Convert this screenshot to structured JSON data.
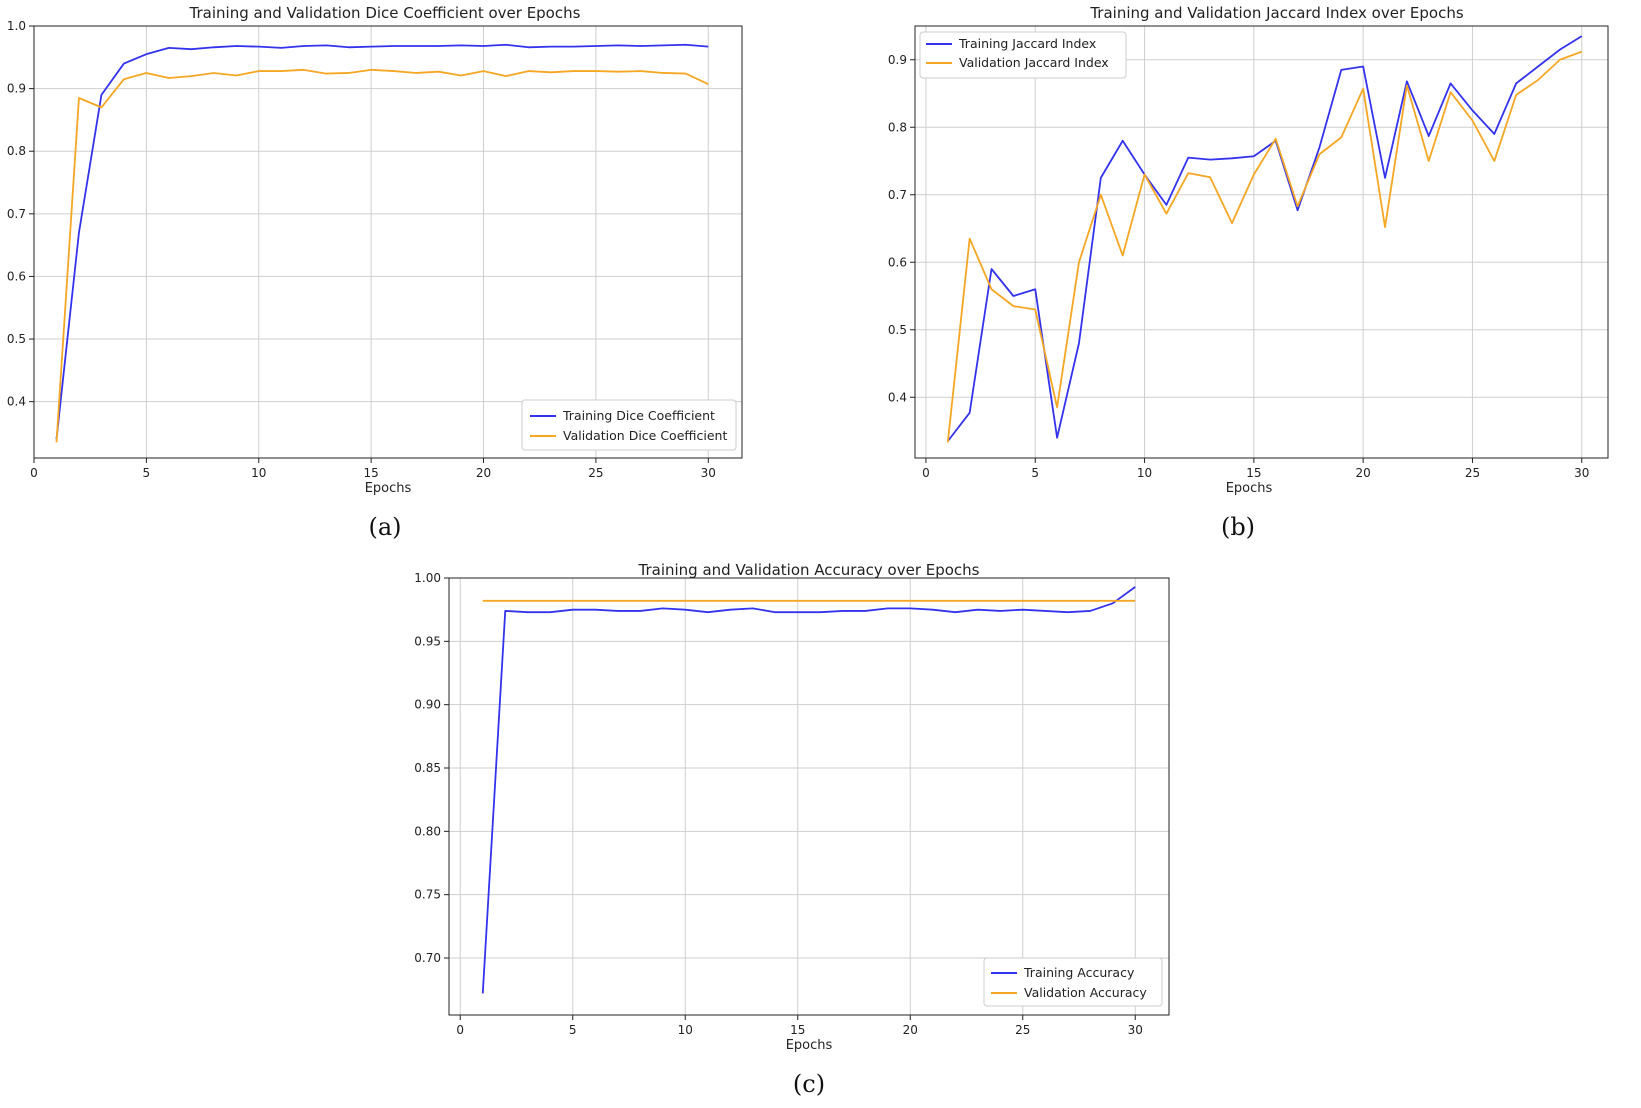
{
  "chart_data": [
    {
      "type": "line",
      "panel": "(a)",
      "title": "Training and Validation Dice Coefficient over Epochs",
      "xlabel": "Epochs",
      "ylabel": "",
      "xlim": [
        0,
        31.5
      ],
      "ylim": [
        0.31,
        1.0
      ],
      "xticks": [
        0,
        5,
        10,
        15,
        20,
        25,
        30
      ],
      "xtick_labels": [
        "0",
        "5",
        "10",
        "15",
        "20",
        "25",
        "30"
      ],
      "yticks": [
        0.4,
        0.5,
        0.6,
        0.7,
        0.8,
        0.9,
        1.0
      ],
      "ytick_labels": [
        "0.4",
        "0.5",
        "0.6",
        "0.7",
        "0.8",
        "0.9",
        "1.0"
      ],
      "grid": true,
      "legend_position": "lower-right",
      "x": [
        1,
        2,
        3,
        4,
        5,
        6,
        7,
        8,
        9,
        10,
        11,
        12,
        13,
        14,
        15,
        16,
        17,
        18,
        19,
        20,
        21,
        22,
        23,
        24,
        25,
        26,
        27,
        28,
        29,
        30
      ],
      "series": [
        {
          "name": "Training Dice Coefficient",
          "color": "#3333ee",
          "values": [
            0.34,
            0.67,
            0.89,
            0.94,
            0.955,
            0.965,
            0.963,
            0.966,
            0.968,
            0.967,
            0.965,
            0.968,
            0.969,
            0.966,
            0.967,
            0.968,
            0.968,
            0.968,
            0.969,
            0.968,
            0.97,
            0.966,
            0.967,
            0.967,
            0.968,
            0.969,
            0.968,
            0.969,
            0.97,
            0.967
          ]
        },
        {
          "name": "Validation Dice Coefficient",
          "color": "#f5a623",
          "values": [
            0.335,
            0.885,
            0.87,
            0.915,
            0.925,
            0.917,
            0.92,
            0.925,
            0.921,
            0.928,
            0.928,
            0.93,
            0.924,
            0.925,
            0.93,
            0.928,
            0.925,
            0.927,
            0.921,
            0.928,
            0.92,
            0.928,
            0.926,
            0.928,
            0.928,
            0.927,
            0.928,
            0.925,
            0.924,
            0.907
          ]
        }
      ]
    },
    {
      "type": "line",
      "panel": "(b)",
      "title": "Training and Validation Jaccard Index over Epochs",
      "xlabel": "Epochs",
      "ylabel": "",
      "xlim": [
        -0.5,
        31.2
      ],
      "ylim": [
        0.31,
        0.95
      ],
      "xticks": [
        0,
        5,
        10,
        15,
        20,
        25,
        30
      ],
      "xtick_labels": [
        "0",
        "5",
        "10",
        "15",
        "20",
        "25",
        "30"
      ],
      "yticks": [
        0.4,
        0.5,
        0.6,
        0.7,
        0.8,
        0.9
      ],
      "ytick_labels": [
        "0.4",
        "0.5",
        "0.6",
        "0.7",
        "0.8",
        "0.9"
      ],
      "grid": true,
      "legend_position": "upper-left",
      "x": [
        1,
        2,
        3,
        4,
        5,
        6,
        7,
        8,
        9,
        10,
        11,
        12,
        13,
        14,
        15,
        16,
        17,
        18,
        19,
        20,
        21,
        22,
        23,
        24,
        25,
        26,
        27,
        28,
        29,
        30
      ],
      "series": [
        {
          "name": "Training Jaccard Index",
          "color": "#3333ee",
          "values": [
            0.335,
            0.377,
            0.59,
            0.55,
            0.56,
            0.34,
            0.48,
            0.725,
            0.78,
            0.73,
            0.685,
            0.755,
            0.752,
            0.754,
            0.757,
            0.78,
            0.677,
            0.77,
            0.885,
            0.89,
            0.725,
            0.868,
            0.787,
            0.865,
            0.825,
            0.79,
            0.865,
            0.89,
            0.915,
            0.935
          ]
        },
        {
          "name": "Validation Jaccard Index",
          "color": "#f5a623",
          "values": [
            0.333,
            0.635,
            0.56,
            0.535,
            0.53,
            0.385,
            0.6,
            0.7,
            0.61,
            0.73,
            0.672,
            0.732,
            0.726,
            0.658,
            0.73,
            0.783,
            0.683,
            0.76,
            0.785,
            0.857,
            0.652,
            0.862,
            0.75,
            0.852,
            0.81,
            0.75,
            0.848,
            0.87,
            0.9,
            0.912
          ]
        }
      ]
    },
    {
      "type": "line",
      "panel": "(c)",
      "title": "Training and Validation Accuracy over Epochs",
      "xlabel": "Epochs",
      "ylabel": "",
      "xlim": [
        -0.5,
        31.5
      ],
      "ylim": [
        0.655,
        1.0
      ],
      "xticks": [
        0,
        5,
        10,
        15,
        20,
        25,
        30
      ],
      "xtick_labels": [
        "0",
        "5",
        "10",
        "15",
        "20",
        "25",
        "30"
      ],
      "yticks": [
        0.7,
        0.75,
        0.8,
        0.85,
        0.9,
        0.95,
        1.0
      ],
      "ytick_labels": [
        "0.70",
        "0.75",
        "0.80",
        "0.85",
        "0.90",
        "0.95",
        "1.00"
      ],
      "grid": true,
      "legend_position": "lower-right",
      "x": [
        1,
        2,
        3,
        4,
        5,
        6,
        7,
        8,
        9,
        10,
        11,
        12,
        13,
        14,
        15,
        16,
        17,
        18,
        19,
        20,
        21,
        22,
        23,
        24,
        25,
        26,
        27,
        28,
        29,
        30
      ],
      "series": [
        {
          "name": "Training Accuracy",
          "color": "#3333ee",
          "values": [
            0.672,
            0.974,
            0.973,
            0.973,
            0.975,
            0.975,
            0.974,
            0.974,
            0.976,
            0.975,
            0.973,
            0.975,
            0.976,
            0.973,
            0.973,
            0.973,
            0.974,
            0.974,
            0.976,
            0.976,
            0.975,
            0.973,
            0.975,
            0.974,
            0.975,
            0.974,
            0.973,
            0.974,
            0.98,
            0.993
          ]
        },
        {
          "name": "Validation Accuracy",
          "color": "#f5a623",
          "values": [
            0.982,
            0.982,
            0.982,
            0.982,
            0.982,
            0.982,
            0.982,
            0.982,
            0.982,
            0.982,
            0.982,
            0.982,
            0.982,
            0.982,
            0.982,
            0.982,
            0.982,
            0.982,
            0.982,
            0.982,
            0.982,
            0.982,
            0.982,
            0.982,
            0.982,
            0.982,
            0.982,
            0.982,
            0.982,
            0.982
          ]
        }
      ]
    }
  ]
}
